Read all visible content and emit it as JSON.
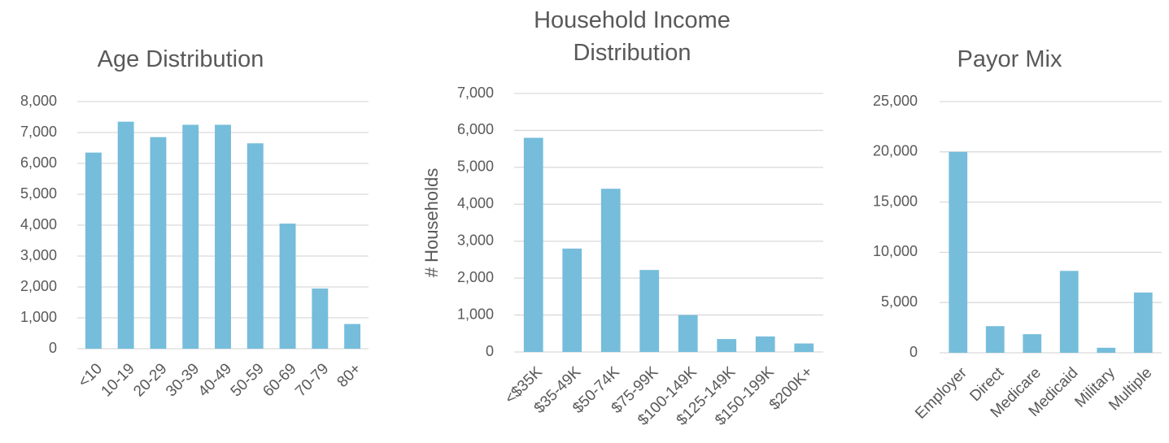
{
  "chart_data": [
    {
      "type": "bar",
      "title": "Age Distribution",
      "categories": [
        "<10",
        "10-19",
        "20-29",
        "30-39",
        "40-49",
        "50-59",
        "60-69",
        "70-79",
        "80+"
      ],
      "values": [
        6350,
        7350,
        6850,
        7250,
        7250,
        6650,
        4050,
        1950,
        800
      ],
      "color": "#75bddb",
      "ylim": [
        0,
        8000
      ],
      "yticks": [
        0,
        {
          "value": 1000,
          "label": "1,000"
        },
        {
          "value": 2000,
          "label": "2,000"
        },
        {
          "value": 3000,
          "label": "3,000"
        },
        {
          "value": 4000,
          "label": "4,000"
        },
        {
          "value": 5000,
          "label": "5,000"
        },
        {
          "value": 6000,
          "label": "6,000"
        },
        {
          "value": 7000,
          "label": "7,000"
        },
        {
          "value": 8000,
          "label": "8,000"
        }
      ],
      "grid": true
    },
    {
      "type": "bar",
      "title": "Household Income Distribution",
      "y_label": "# Households",
      "categories": [
        "<$35K",
        "$35-49K",
        "$50-74K",
        "$75-99K",
        "$100-149K",
        "$125-149K",
        "$150-199K",
        "$200K+"
      ],
      "values": [
        5800,
        2800,
        4420,
        2220,
        1000,
        350,
        420,
        230
      ],
      "color": "#75bddb",
      "ylim": [
        0,
        7000
      ],
      "yticks": [
        0,
        {
          "value": 1000,
          "label": "1,000"
        },
        {
          "value": 2000,
          "label": "2,000"
        },
        {
          "value": 3000,
          "label": "3,000"
        },
        {
          "value": 4000,
          "label": "4,000"
        },
        {
          "value": 5000,
          "label": "5,000"
        },
        {
          "value": 6000,
          "label": "6,000"
        },
        {
          "value": 7000,
          "label": "7,000"
        }
      ],
      "grid": true
    },
    {
      "type": "bar",
      "title": "Payor Mix",
      "categories": [
        "Employer",
        "Direct",
        "Medicare",
        "Medicaid",
        "Military",
        "Multiple"
      ],
      "values": [
        20000,
        2650,
        1850,
        8150,
        500,
        6000
      ],
      "color": "#75bddb",
      "ylim": [
        0,
        25000
      ],
      "yticks": [
        0,
        {
          "value": 5000,
          "label": "5,000"
        },
        {
          "value": 10000,
          "label": "10,000"
        },
        {
          "value": 15000,
          "label": "15,000"
        },
        {
          "value": 20000,
          "label": "20,000"
        },
        {
          "value": 25000,
          "label": "25,000"
        }
      ],
      "grid": true
    }
  ]
}
